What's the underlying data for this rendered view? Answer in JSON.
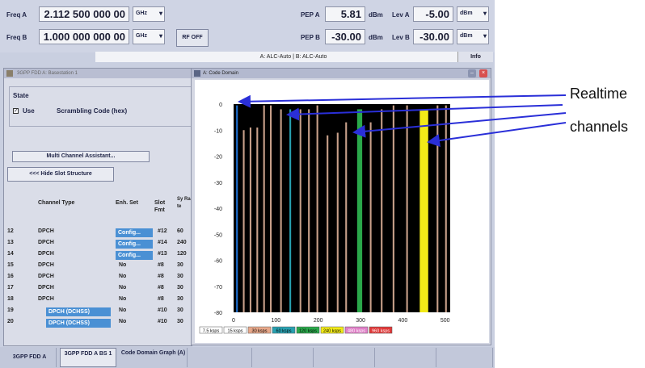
{
  "header": {
    "freq_a_label": "Freq A",
    "freq_a_value": "2.112 500 000 00",
    "freq_a_unit": "GHz",
    "freq_b_label": "Freq B",
    "freq_b_value": "1.000 000 000 00",
    "freq_b_unit": "GHz",
    "rf_off_label": "RF OFF",
    "pep_a_label": "PEP A",
    "pep_a_value": "5.81",
    "pep_a_unit": "dBm",
    "lev_a_label": "Lev A",
    "lev_a_value": "-5.00",
    "lev_a_unit": "dBm",
    "pep_b_label": "PEP B",
    "pep_b_value": "-30.00",
    "pep_b_unit": "dBm",
    "lev_b_label": "Lev B",
    "lev_b_value": "-30.00",
    "lev_b_unit": "dBm",
    "status_text": "A: ALC-Auto | B: ALC-Auto",
    "info_label": "Info"
  },
  "left_panel": {
    "title": "3GPP FDD A: Basestation 1",
    "state_label": "State",
    "use_label": "Use",
    "use_checked": true,
    "scrambling_label": "Scrambling Code (hex)",
    "multi_channel_button": "Multi Channel Assistant...",
    "hide_slot_button": "<<< Hide Slot Structure",
    "table": {
      "headers": [
        "Channel Type",
        "Enh. Set",
        "Slot Fmt",
        "Sy Ra te"
      ],
      "rows": [
        {
          "num": "12",
          "type": "DPCH",
          "enh": "Config...",
          "slot": "#12",
          "rate": "60",
          "enh_btn": true
        },
        {
          "num": "13",
          "type": "DPCH",
          "enh": "Config...",
          "slot": "#14",
          "rate": "240",
          "enh_btn": true
        },
        {
          "num": "14",
          "type": "DPCH",
          "enh": "Config...",
          "slot": "#13",
          "rate": "120",
          "enh_btn": true
        },
        {
          "num": "15",
          "type": "DPCH",
          "enh": "No",
          "slot": "#8",
          "rate": "30",
          "enh_btn": false
        },
        {
          "num": "16",
          "type": "DPCH",
          "enh": "No",
          "slot": "#8",
          "rate": "30",
          "enh_btn": false
        },
        {
          "num": "17",
          "type": "DPCH",
          "enh": "No",
          "slot": "#8",
          "rate": "30",
          "enh_btn": false
        },
        {
          "num": "18",
          "type": "DPCH",
          "enh": "No",
          "slot": "#8",
          "rate": "30",
          "enh_btn": false
        },
        {
          "num": "19",
          "type": "DPCH (DCHSS)",
          "enh": "No",
          "slot": "#10",
          "rate": "30",
          "enh_btn": false,
          "type_btn": true
        },
        {
          "num": "20",
          "type": "DPCH (DCHSS)",
          "enh": "No",
          "slot": "#10",
          "rate": "30",
          "enh_btn": false,
          "type_btn": true
        }
      ]
    }
  },
  "code_domain": {
    "title": "A: Code Domain"
  },
  "chart_data": {
    "type": "bar",
    "title": "",
    "xlabel": "",
    "ylabel": "",
    "xlim": [
      0,
      512
    ],
    "ylim": [
      -80,
      0
    ],
    "x_ticks": [
      "0",
      "100",
      "200",
      "300",
      "400",
      "500"
    ],
    "y_ticks": [
      "0",
      "-10",
      "-20",
      "-30",
      "-40",
      "-50",
      "-60",
      "-70",
      "-80"
    ],
    "bars": [
      {
        "x": 6,
        "value": -0.5,
        "width": 4,
        "color": "#1f6fd0"
      },
      {
        "x": 22,
        "value": -10,
        "width": 4,
        "color": "#c8a08a"
      },
      {
        "x": 38,
        "value": -9,
        "width": 4,
        "color": "#c8a08a"
      },
      {
        "x": 54,
        "value": -9,
        "width": 4,
        "color": "#c8a08a"
      },
      {
        "x": 70,
        "value": -0.5,
        "width": 4,
        "color": "#c8a08a"
      },
      {
        "x": 86,
        "value": -0.5,
        "width": 4,
        "color": "#c8a08a"
      },
      {
        "x": 110,
        "value": -2,
        "width": 4,
        "color": "#c8a08a"
      },
      {
        "x": 132,
        "value": -2,
        "width": 4,
        "color": "#28a0b0"
      },
      {
        "x": 156,
        "value": -2,
        "width": 4,
        "color": "#c8a08a"
      },
      {
        "x": 176,
        "value": -2,
        "width": 4,
        "color": "#c8a08a"
      },
      {
        "x": 196,
        "value": -0.5,
        "width": 4,
        "color": "#c8a08a"
      },
      {
        "x": 220,
        "value": -12,
        "width": 4,
        "color": "#c8a08a"
      },
      {
        "x": 244,
        "value": -11,
        "width": 4,
        "color": "#c8a08a"
      },
      {
        "x": 264,
        "value": -7,
        "width": 4,
        "color": "#c8a08a"
      },
      {
        "x": 292,
        "value": -2,
        "width": 12,
        "color": "#2aa84a"
      },
      {
        "x": 322,
        "value": -7,
        "width": 4,
        "color": "#c8a08a"
      },
      {
        "x": 348,
        "value": -2,
        "width": 4,
        "color": "#c8a08a"
      },
      {
        "x": 376,
        "value": -0.5,
        "width": 4,
        "color": "#c8a08a"
      },
      {
        "x": 408,
        "value": -0.5,
        "width": 4,
        "color": "#c8a08a"
      },
      {
        "x": 440,
        "value": -2,
        "width": 20,
        "color": "#f2ea18"
      },
      {
        "x": 480,
        "value": -0.5,
        "width": 4,
        "color": "#c8a08a"
      },
      {
        "x": 500,
        "value": -0.5,
        "width": 4,
        "color": "#c8a08a"
      }
    ],
    "legend": [
      {
        "label": "7.5 ksps",
        "color": "#ffffff",
        "text_color": "#000000"
      },
      {
        "label": "15 ksps",
        "color": "#ffffff",
        "text_color": "#000000"
      },
      {
        "label": "30 ksps",
        "color": "#e8a88a",
        "text_color": "#000000"
      },
      {
        "label": "60 ksps",
        "color": "#28a0b0",
        "text_color": "#000000"
      },
      {
        "label": "120 ksps",
        "color": "#2aa84a",
        "text_color": "#000000"
      },
      {
        "label": "240 ksps",
        "color": "#f2ea18",
        "text_color": "#000000"
      },
      {
        "label": "480 ksps",
        "color": "#e080c8",
        "text_color": "#ffffff"
      },
      {
        "label": "960 ksps",
        "color": "#e03838",
        "text_color": "#ffffff"
      }
    ]
  },
  "softkeys": [
    "3GPP FDD A",
    "3GPP FDD A BS 1",
    "Code Domain Graph (A)",
    "",
    "",
    "",
    "",
    ""
  ],
  "annotations": {
    "realtime": "Realtime",
    "channels": "channels",
    "line_color": "#2a2fd8"
  }
}
